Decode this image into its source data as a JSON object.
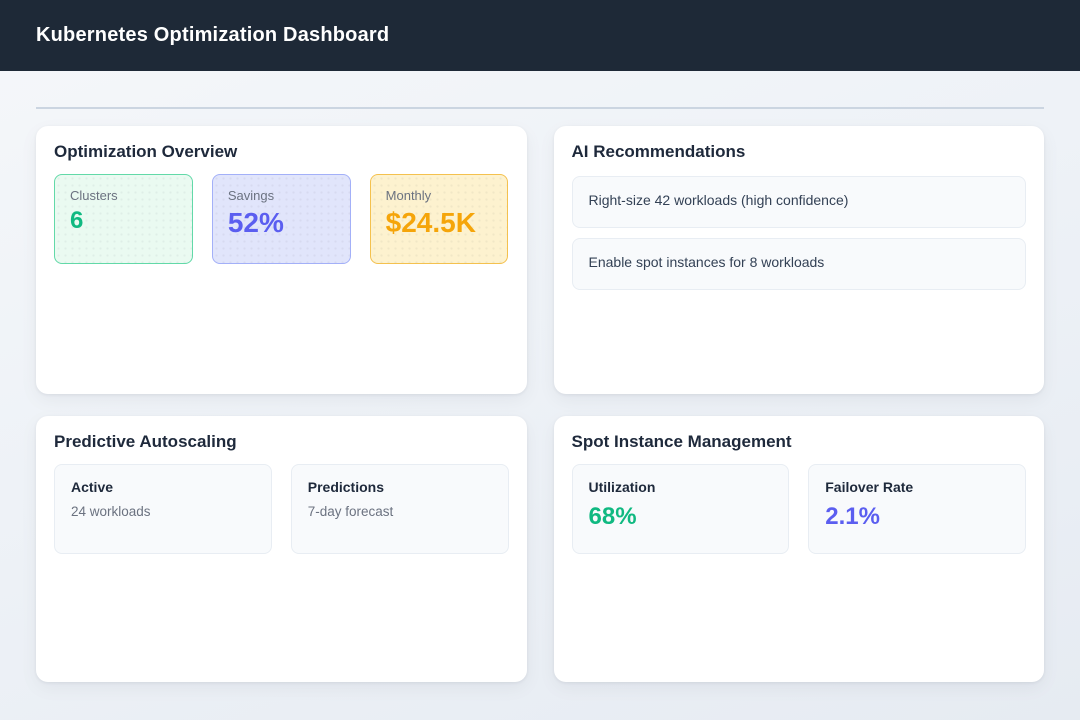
{
  "header": {
    "title": "Kubernetes Optimization Dashboard"
  },
  "cards": {
    "overview": {
      "title": "Optimization Overview",
      "stats": [
        {
          "label": "Clusters",
          "value": "6",
          "accent": "#10b981"
        },
        {
          "label": "Savings",
          "value": "52%",
          "accent": "#5b5ef0"
        },
        {
          "label": "Monthly",
          "value": "$24.5K",
          "accent": "#f5a50a"
        }
      ]
    },
    "recommendations": {
      "title": "AI Recommendations",
      "items": [
        "Right-size 42 workloads (high confidence)",
        "Enable spot instances for 8 workloads"
      ]
    },
    "autoscaling": {
      "title": "Predictive Autoscaling",
      "stats": [
        {
          "label": "Active",
          "value": "24 workloads"
        },
        {
          "label": "Predictions",
          "value": "7-day forecast"
        }
      ]
    },
    "spot": {
      "title": "Spot Instance Management",
      "stats": [
        {
          "label": "Utilization",
          "value": "68%",
          "accent": "#10b981"
        },
        {
          "label": "Failover Rate",
          "value": "2.1%",
          "accent": "#5b5ef0"
        }
      ]
    }
  },
  "colors": {
    "header_bg": "#1e2937",
    "page_bg": "#eef2f7",
    "card_bg": "#ffffff",
    "divider": "#cbd5e1",
    "green": "#10b981",
    "green_box_bg": "#eafaf1",
    "green_box_border": "#62d9a8",
    "indigo": "#5b5ef0",
    "indigo_box_bg": "#e1e5fb",
    "indigo_box_border": "#a3b0f8",
    "amber": "#f5a50a",
    "amber_box_bg": "#fdf2cf",
    "amber_box_border": "#f4c14e",
    "subbox_bg": "#f8fafc",
    "label_gray": "#6b7280",
    "heading_dark": "#1e293b"
  }
}
